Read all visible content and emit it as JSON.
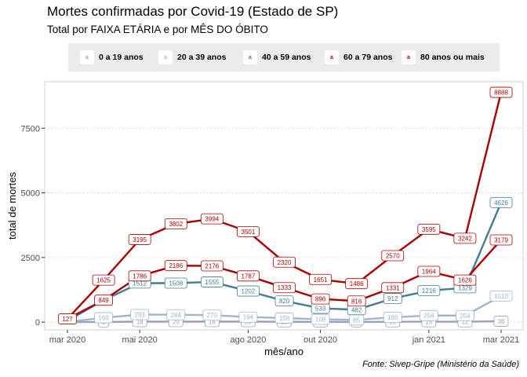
{
  "chart_data": {
    "type": "line",
    "title": "Mortes confirmadas por Covid-19 (Estado de SP)",
    "subtitle": "Total por FAIXA ETÁRIA e por MÊS DO ÓBITO",
    "caption": "Fonte: Sivep-Gripe (Ministério da Saúde)",
    "xlabel": "mês/ano",
    "ylabel": "total de mortes",
    "ylim": [
      -300,
      9300
    ],
    "yticks": [
      0,
      2500,
      5000,
      7500
    ],
    "ytick_labels": [
      "0",
      "2500",
      "5000",
      "7500"
    ],
    "xticks": [
      "2020-03",
      "2020-05",
      "2020-08",
      "2020-10",
      "2021-01",
      "2021-03"
    ],
    "xtick_labels": [
      "mar 2020",
      "mai 2020",
      "ago 2020",
      "out 2020",
      "jan 2021",
      "mar 2021"
    ],
    "x": [
      "2020-03",
      "2020-04",
      "2020-05",
      "2020-06",
      "2020-07",
      "2020-08",
      "2020-09",
      "2020-10",
      "2020-11",
      "2020-12",
      "2021-01",
      "2021-02",
      "2021-03"
    ],
    "grid": "horizontal-dotted",
    "legend": "top",
    "legend_key_glyph": "a",
    "series": [
      {
        "name": "0 a 19 anos",
        "color": "#9a9fc0",
        "values": [
          2,
          8,
          18,
          20,
          18,
          20,
          12,
          10,
          8,
          12,
          15,
          12,
          36
        ]
      },
      {
        "name": "20 a 39 anos",
        "color": "#9db7c9",
        "values": [
          8,
          169,
          293,
          284,
          270,
          194,
          158,
          108,
          85,
          186,
          256,
          254,
          1010
        ]
      },
      {
        "name": "40 a 59 anos",
        "color": "#457b93",
        "values": [
          50,
          849,
          1512,
          1508,
          1555,
          1202,
          820,
          533,
          482,
          912,
          1216,
          1329,
          4626
        ]
      },
      {
        "name": "60 a 79 anos",
        "color": "#a80000",
        "values": [
          127,
          849,
          1786,
          2186,
          2176,
          1787,
          1333,
          896,
          816,
          1331,
          1964,
          1626,
          3179
        ]
      },
      {
        "name": "80 anos ou mais",
        "color": "#a80000",
        "values": [
          127,
          1625,
          3195,
          3802,
          3994,
          3501,
          2320,
          1651,
          1486,
          2570,
          3595,
          3242,
          8888
        ]
      }
    ],
    "data_labels": [
      {
        "series": 0,
        "indices": [
          1,
          2,
          3,
          4,
          5,
          6,
          7,
          8,
          9,
          10,
          11,
          12
        ]
      },
      {
        "series": 1,
        "indices": [
          1,
          2,
          3,
          4,
          5,
          6,
          7,
          8,
          9,
          10,
          11,
          12
        ]
      },
      {
        "series": 2,
        "indices": [
          2,
          3,
          4,
          5,
          6,
          7,
          8,
          9,
          10,
          11,
          12
        ]
      },
      {
        "series": 3,
        "indices": [
          0,
          1,
          2,
          3,
          4,
          5,
          6,
          7,
          8,
          9,
          10,
          11,
          12
        ]
      },
      {
        "series": 4,
        "indices": [
          1,
          2,
          3,
          4,
          5,
          6,
          7,
          8,
          9,
          10,
          11,
          12
        ]
      }
    ]
  }
}
